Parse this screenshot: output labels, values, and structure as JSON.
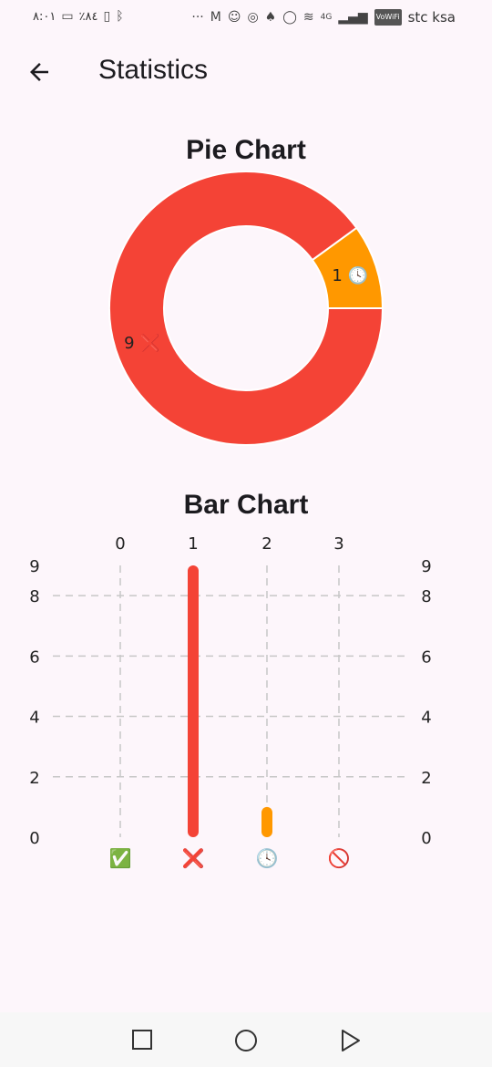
{
  "status_bar": {
    "time": "٨:٠١",
    "battery": "٪٨٤",
    "network": "4G",
    "vowifi": "VoWiFi",
    "carrier": "stc ksa"
  },
  "app_bar": {
    "title": "Statistics",
    "back_icon": "arrow-back-icon"
  },
  "pie_section": {
    "title": "Pie Chart"
  },
  "bar_section": {
    "title": "Bar Chart"
  },
  "colors": {
    "red": "#f44336",
    "orange": "#ff9800",
    "grid": "#c7c7c7",
    "background": "#fdf6fb"
  },
  "chart_data": [
    {
      "type": "pie",
      "donut": true,
      "slices": [
        {
          "value": 9,
          "label": "9",
          "icon": "cross-mark-icon",
          "emoji": "❌",
          "color": "#f44336"
        },
        {
          "value": 1,
          "label": "1",
          "icon": "clock-icon",
          "emoji": "🕓",
          "color": "#ff9800"
        }
      ]
    },
    {
      "type": "bar",
      "categories": [
        "0",
        "1",
        "2",
        "3"
      ],
      "category_icons": [
        {
          "icon": "check-mark-icon",
          "emoji": "✅"
        },
        {
          "icon": "cross-mark-icon",
          "emoji": "❌"
        },
        {
          "icon": "clock-icon",
          "emoji": "🕓"
        },
        {
          "icon": "prohibited-icon",
          "emoji": "🚫"
        }
      ],
      "values": [
        0,
        9,
        1,
        0
      ],
      "bar_colors": [
        "#4caf50",
        "#f44336",
        "#ff9800",
        "#f44336"
      ],
      "ylim": [
        0,
        9
      ],
      "yticks": [
        0,
        2,
        4,
        6,
        8,
        9
      ],
      "grid": true,
      "right_axis": true
    }
  ],
  "nav_bar": {
    "recents_icon": "square-recents-icon",
    "home_icon": "circle-home-icon",
    "back_icon": "triangle-back-icon"
  }
}
